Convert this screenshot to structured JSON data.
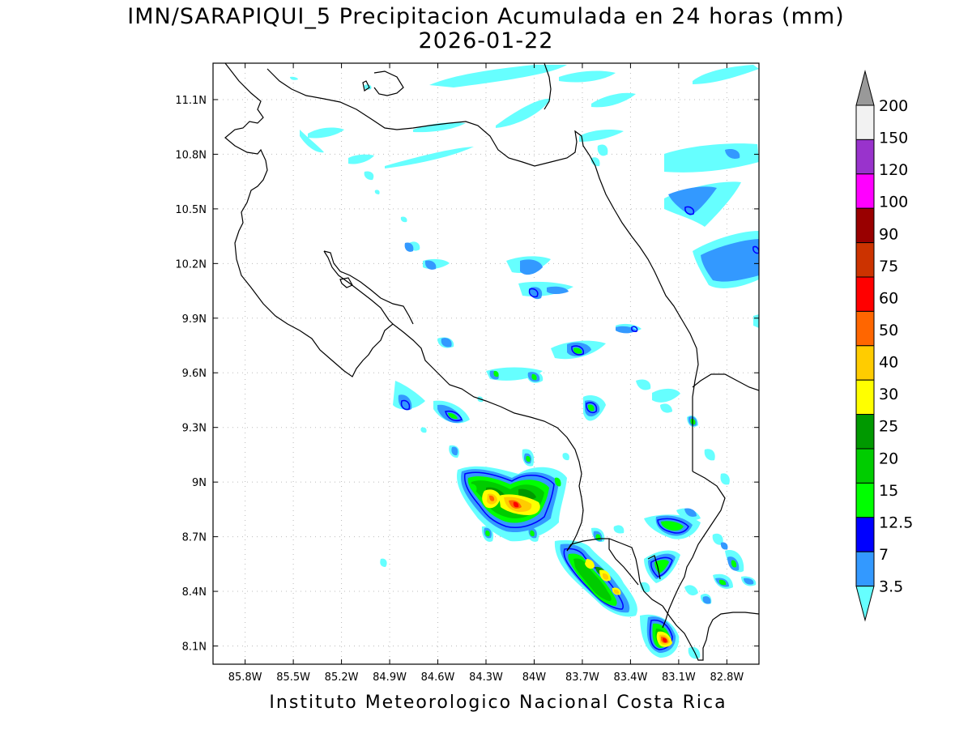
{
  "title": "IMN/SARAPIQUI_5 Precipitacion Acumulada en 24 horas (mm)",
  "date": "2026-01-22",
  "footer": "Instituto Meteorologico Nacional Costa Rica",
  "map": {
    "lon_range": [
      -86.0,
      -82.6
    ],
    "lat_range": [
      8.0,
      11.3
    ],
    "lon_ticks": [
      "85.8W",
      "85.5W",
      "85.2W",
      "84.9W",
      "84.6W",
      "84.3W",
      "84W",
      "83.7W",
      "83.4W",
      "83.1W",
      "82.8W"
    ],
    "lat_ticks": [
      "11.1N",
      "10.8N",
      "10.5N",
      "10.2N",
      "9.9N",
      "9.6N",
      "9.3N",
      "9N",
      "8.7N",
      "8.4N",
      "8.1N"
    ],
    "grid": "dotted"
  },
  "colorbar": {
    "labels": [
      "3.5",
      "7",
      "12.5",
      "15",
      "20",
      "25",
      "30",
      "40",
      "50",
      "60",
      "75",
      "90",
      "100",
      "120",
      "150",
      "200"
    ],
    "colors": [
      "#66ffff",
      "#3399ff",
      "#0000ff",
      "#00ff00",
      "#00cc00",
      "#009900",
      "#ffff00",
      "#ffcc00",
      "#ff6600",
      "#ff0000",
      "#cc3300",
      "#990000",
      "#ff00ff",
      "#9933cc",
      "#f2f2f2",
      "#999999"
    ]
  }
}
